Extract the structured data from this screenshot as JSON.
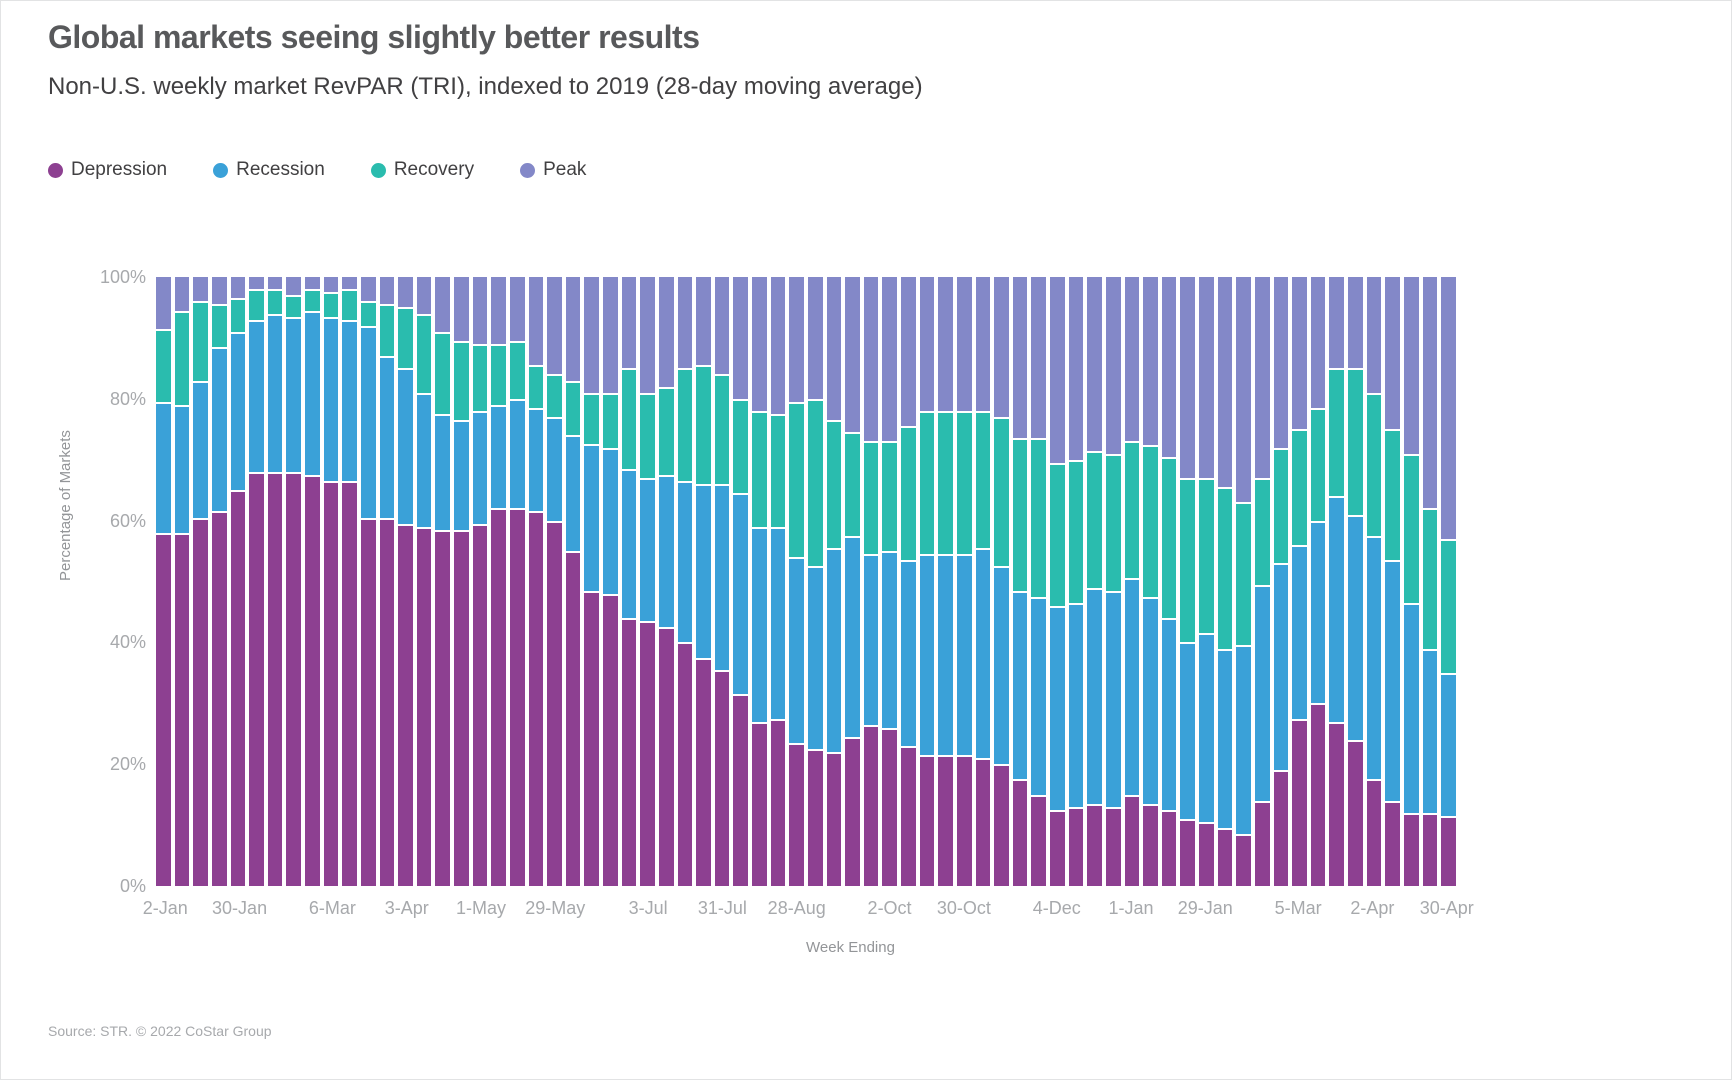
{
  "header": {
    "title": "Global markets seeing slightly better results",
    "subtitle": "Non-U.S. weekly market RevPAR (TRI), indexed to 2019 (28-day moving average)"
  },
  "legend": [
    {
      "label": "Depression",
      "color": "#8d4091"
    },
    {
      "label": "Recession",
      "color": "#3aa1d8"
    },
    {
      "label": "Recovery",
      "color": "#2abcae"
    },
    {
      "label": "Peak",
      "color": "#8388c8"
    }
  ],
  "footer": {
    "source": "Source: STR. © 2022 CoStar Group"
  },
  "chart_data": {
    "type": "bar",
    "stacked": true,
    "title": "Global markets seeing slightly better results",
    "xlabel": "Week Ending",
    "ylabel": "Percentage of Markets",
    "ylim": [
      0,
      100
    ],
    "grid": false,
    "legend_position": "top-left",
    "y_ticks": [
      "100%",
      "80%",
      "60%",
      "40%",
      "20%",
      "0%"
    ],
    "y_tick_values": [
      100,
      80,
      60,
      40,
      20,
      0
    ],
    "categories": [
      "2-Jan",
      "9-Jan",
      "16-Jan",
      "23-Jan",
      "30-Jan",
      "6-Feb",
      "13-Feb",
      "20-Feb",
      "27-Feb",
      "6-Mar",
      "13-Mar",
      "20-Mar",
      "27-Mar",
      "3-Apr",
      "10-Apr",
      "17-Apr",
      "24-Apr",
      "1-May",
      "8-May",
      "15-May",
      "22-May",
      "29-May",
      "5-Jun",
      "12-Jun",
      "19-Jun",
      "26-Jun",
      "3-Jul",
      "10-Jul",
      "17-Jul",
      "24-Jul",
      "31-Jul",
      "7-Aug",
      "14-Aug",
      "21-Aug",
      "28-Aug",
      "4-Sep",
      "11-Sep",
      "18-Sep",
      "25-Sep",
      "2-Oct",
      "9-Oct",
      "16-Oct",
      "23-Oct",
      "30-Oct",
      "6-Nov",
      "13-Nov",
      "20-Nov",
      "27-Nov",
      "4-Dec",
      "11-Dec",
      "18-Dec",
      "25-Dec",
      "1-Jan",
      "8-Jan",
      "15-Jan",
      "22-Jan",
      "29-Jan",
      "5-Feb",
      "12-Feb",
      "19-Feb",
      "26-Feb",
      "5-Mar",
      "12-Mar",
      "19-Mar",
      "26-Mar",
      "2-Apr",
      "9-Apr",
      "16-Apr",
      "23-Apr",
      "30-Apr"
    ],
    "x_ticks": [
      {
        "i": 0,
        "label": "2-Jan"
      },
      {
        "i": 4,
        "label": "30-Jan"
      },
      {
        "i": 9,
        "label": "6-Mar"
      },
      {
        "i": 13,
        "label": "3-Apr"
      },
      {
        "i": 17,
        "label": "1-May"
      },
      {
        "i": 21,
        "label": "29-May"
      },
      {
        "i": 26,
        "label": "3-Jul"
      },
      {
        "i": 30,
        "label": "31-Jul"
      },
      {
        "i": 34,
        "label": "28-Aug"
      },
      {
        "i": 39,
        "label": "2-Oct"
      },
      {
        "i": 43,
        "label": "30-Oct"
      },
      {
        "i": 48,
        "label": "4-Dec"
      },
      {
        "i": 52,
        "label": "1-Jan"
      },
      {
        "i": 56,
        "label": "29-Jan"
      },
      {
        "i": 61,
        "label": "5-Mar"
      },
      {
        "i": 65,
        "label": "2-Apr"
      },
      {
        "i": 69,
        "label": "30-Apr"
      }
    ],
    "series": [
      {
        "name": "Depression",
        "color": "#8d4091",
        "values": [
          58,
          58,
          60.5,
          61.5,
          65,
          68,
          68,
          68,
          67.5,
          66.5,
          66.5,
          60.5,
          60.5,
          59.5,
          59,
          58.5,
          58.5,
          59.5,
          62,
          62,
          61.5,
          60,
          55,
          48.5,
          48,
          44,
          43.5,
          42.5,
          40,
          37.5,
          35.5,
          31.5,
          27,
          27.5,
          23.5,
          22.5,
          22,
          24.5,
          26.5,
          26,
          23,
          21.5,
          21.5,
          21.5,
          21,
          20,
          17.5,
          15,
          12.5,
          13,
          13.5,
          13,
          15,
          13.5,
          12.5,
          11,
          10.5,
          9.5,
          8.5,
          14,
          19,
          27.5,
          30,
          27,
          24,
          17.5,
          14,
          12,
          12,
          11.5
        ]
      },
      {
        "name": "Recession",
        "color": "#3aa1d8",
        "values": [
          21.5,
          21,
          22.5,
          27,
          26,
          25,
          26,
          25.5,
          27,
          27,
          26.5,
          31.5,
          26.5,
          25.5,
          22,
          19,
          18,
          18.5,
          17,
          18,
          17,
          17,
          19,
          24,
          24,
          24.5,
          23.5,
          25,
          26.5,
          28.5,
          30.5,
          33,
          32,
          31.5,
          30.5,
          30,
          33.5,
          33,
          28,
          29,
          30.5,
          33,
          33,
          33,
          34.5,
          32.5,
          31,
          32.5,
          33.5,
          33.5,
          35.5,
          35.5,
          35.5,
          34,
          31.5,
          29,
          31,
          29.5,
          31,
          35.5,
          34,
          28.5,
          30,
          37,
          37,
          40,
          39.5,
          34.5,
          27,
          23.5
        ]
      },
      {
        "name": "Recovery",
        "color": "#2abcae",
        "values": [
          12,
          15.5,
          13,
          7,
          5.5,
          5,
          4,
          3.5,
          3.5,
          4,
          5,
          4,
          8.5,
          10,
          13,
          13.5,
          13,
          11,
          10,
          9.5,
          7,
          7,
          9,
          8.5,
          9,
          16.5,
          14,
          14.5,
          18.5,
          19.5,
          18,
          15.5,
          19,
          18.5,
          25.5,
          27.5,
          21,
          17,
          18.5,
          18,
          22,
          23.5,
          23.5,
          23.5,
          22.5,
          24.5,
          25,
          26,
          23.5,
          23.5,
          22.5,
          22.5,
          22.5,
          25,
          26.5,
          27,
          25.5,
          26.5,
          23.5,
          17.5,
          19,
          19,
          18.5,
          21,
          24,
          23.5,
          21.5,
          24.5,
          23,
          22
        ]
      },
      {
        "name": "Peak",
        "color": "#8388c8",
        "values": [
          8.5,
          5.5,
          4,
          4.5,
          3.5,
          2,
          2,
          3,
          2,
          2.5,
          2,
          4,
          4.5,
          5,
          6,
          9,
          10.5,
          11,
          11,
          10.5,
          14.5,
          16,
          17,
          19,
          19,
          15,
          19,
          18,
          15,
          14.5,
          16,
          20,
          22,
          22.5,
          20.5,
          20,
          23.5,
          25.5,
          27,
          27,
          24.5,
          22,
          22,
          22,
          22,
          23,
          26.5,
          26.5,
          30.5,
          30,
          28.5,
          29,
          27,
          27.5,
          29.5,
          33,
          33,
          34.5,
          37,
          33,
          28,
          25,
          21.5,
          15,
          15,
          19,
          25,
          29,
          38,
          43
        ]
      }
    ]
  }
}
